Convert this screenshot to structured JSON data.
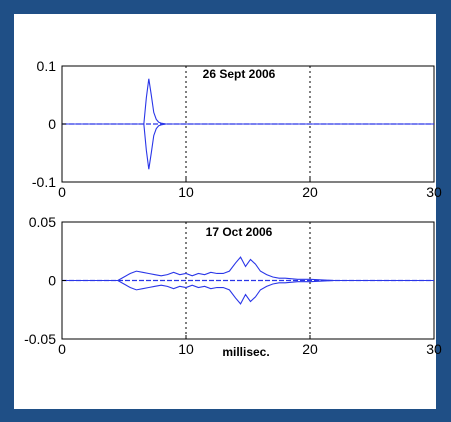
{
  "colors": {
    "background": "#1f4f86",
    "panel": "#ffffff",
    "trace": "#2a36e8",
    "axis": "#000000",
    "grid": "#000000"
  },
  "chart_data": [
    {
      "type": "line",
      "title": "26 Sept 2006",
      "xlabel": "",
      "ylabel": "",
      "xlim": [
        0,
        30
      ],
      "ylim": [
        -0.1,
        0.1
      ],
      "xticks": [
        "0",
        "10",
        "20",
        "30"
      ],
      "yticks": [
        "-0.1",
        "0",
        "0.1"
      ],
      "grid": "vertical dotted lines at x = 10 and 20",
      "series": [
        {
          "x": [
            0,
            6.6,
            6.8,
            7.0,
            7.2,
            7.4,
            7.6,
            7.8,
            8.0,
            8.4,
            30
          ],
          "envelope_upper": [
            0,
            0,
            0.045,
            0.078,
            0.05,
            0.02,
            0.008,
            0.003,
            0.0015,
            0,
            0
          ],
          "envelope_lower": [
            0,
            0,
            -0.045,
            -0.078,
            -0.05,
            -0.02,
            -0.008,
            -0.003,
            -0.0015,
            0,
            0
          ]
        }
      ]
    },
    {
      "type": "line",
      "title": "17 Oct 2006",
      "xlabel": "millisec.",
      "ylabel": "",
      "xlim": [
        0,
        30
      ],
      "ylim": [
        -0.05,
        0.05
      ],
      "xticks": [
        "0",
        "10",
        "20",
        "30"
      ],
      "yticks": [
        "-0.05",
        "0",
        "0.05"
      ],
      "grid": "vertical dotted lines at x = 10 and 20",
      "series": [
        {
          "x": [
            0,
            4.5,
            5,
            5.5,
            6,
            6.5,
            7,
            7.5,
            8,
            8.5,
            9,
            9.5,
            10,
            10.5,
            11,
            11.5,
            12,
            12.5,
            13,
            13.5,
            14,
            14.4,
            14.8,
            15.2,
            15.6,
            16,
            16.5,
            17,
            17.5,
            18,
            19,
            20,
            22,
            30
          ],
          "envelope_upper": [
            0,
            0,
            0.003,
            0.006,
            0.008,
            0.007,
            0.006,
            0.005,
            0.004,
            0.005,
            0.007,
            0.005,
            0.006,
            0.004,
            0.006,
            0.005,
            0.007,
            0.006,
            0.006,
            0.008,
            0.015,
            0.02,
            0.012,
            0.018,
            0.014,
            0.008,
            0.005,
            0.003,
            0.002,
            0.002,
            0.001,
            0.001,
            0,
            0
          ],
          "envelope_lower": [
            0,
            0,
            -0.003,
            -0.006,
            -0.008,
            -0.007,
            -0.006,
            -0.005,
            -0.004,
            -0.005,
            -0.007,
            -0.005,
            -0.006,
            -0.004,
            -0.006,
            -0.005,
            -0.007,
            -0.006,
            -0.006,
            -0.008,
            -0.015,
            -0.02,
            -0.012,
            -0.018,
            -0.014,
            -0.008,
            -0.005,
            -0.003,
            -0.002,
            -0.002,
            -0.001,
            -0.001,
            0,
            0
          ]
        }
      ]
    }
  ]
}
